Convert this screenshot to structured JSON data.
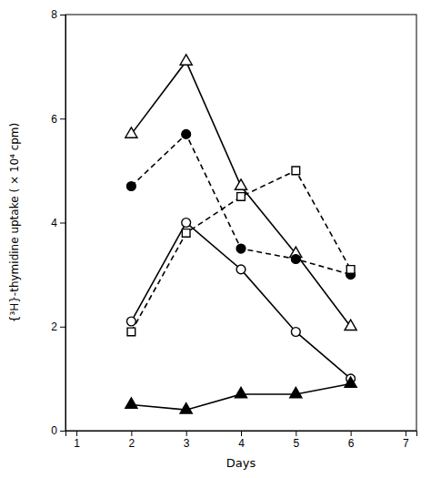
{
  "chart_data": {
    "type": "line",
    "xlabel": "Days",
    "ylabel": "{³H}-thymidine uptake ( × 10⁴ cpm)",
    "x": [
      2,
      3,
      4,
      5,
      6
    ],
    "series": [
      {
        "values": [
          5.7,
          7.1,
          4.7,
          3.4,
          2.0
        ],
        "color": "#000000",
        "marker": "open-triangle",
        "line_style": "solid"
      },
      {
        "values": [
          4.7,
          5.7,
          3.5,
          3.3,
          3.0
        ],
        "color": "#000000",
        "marker": "filled-circle",
        "line_style": "dashed"
      },
      {
        "values": [
          1.9,
          3.8,
          4.5,
          5.0,
          3.1
        ],
        "color": "#000000",
        "marker": "open-square",
        "line_style": "dashed"
      },
      {
        "values": [
          2.1,
          4.0,
          3.1,
          1.9,
          1.0
        ],
        "color": "#000000",
        "marker": "open-circle",
        "line_style": "solid"
      },
      {
        "values": [
          0.5,
          0.4,
          0.7,
          0.7,
          0.9
        ],
        "color": "#000000",
        "marker": "filled-triangle",
        "line_style": "solid"
      }
    ],
    "xlim": [
      0.8,
      7.2
    ],
    "ylim": [
      0,
      8
    ],
    "xticks": [
      1,
      2,
      3,
      4,
      5,
      6,
      7
    ],
    "yticks": [
      0,
      2,
      4,
      6,
      8
    ],
    "grid": false
  }
}
